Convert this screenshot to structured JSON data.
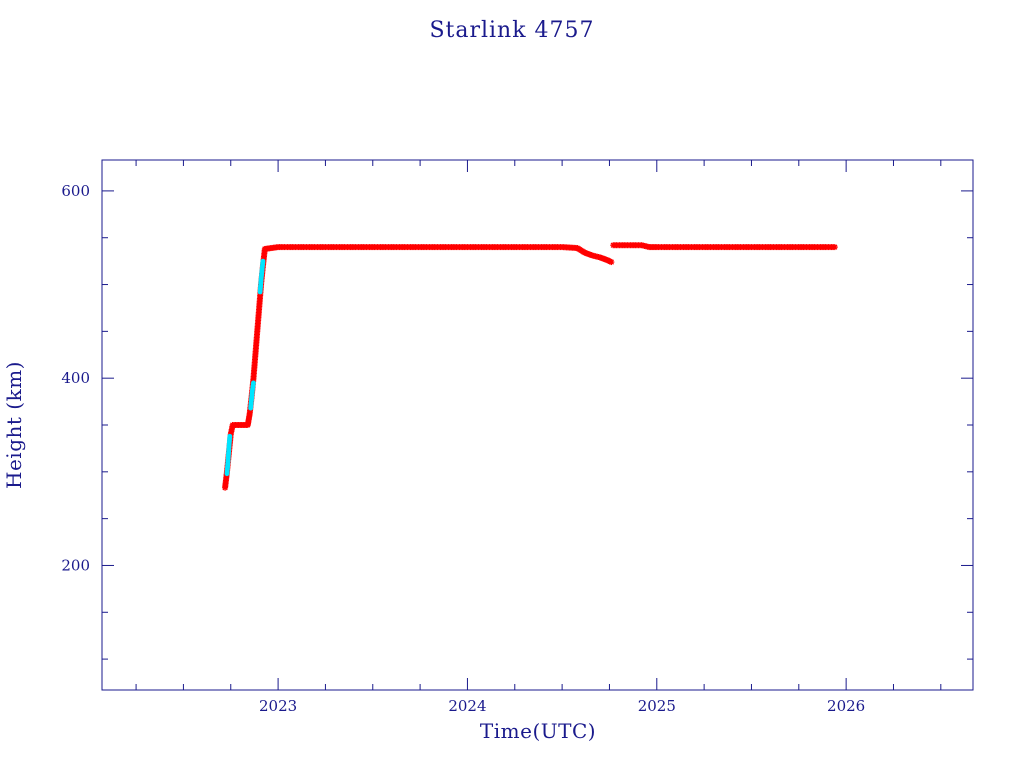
{
  "chart_data": {
    "type": "scatter",
    "title": "Starlink 4757",
    "xlabel": "Time(UTC)",
    "ylabel": "Height (km)",
    "xlim": [
      2022.07,
      2026.67
    ],
    "ylim": [
      67,
      633
    ],
    "x_ticks": [
      2023,
      2024,
      2025,
      2026
    ],
    "x_tick_labels": [
      "2023",
      "2024",
      "2025",
      "2026"
    ],
    "x_minor_ticks": [
      2022.25,
      2022.5,
      2022.75,
      2023.25,
      2023.5,
      2023.75,
      2024.25,
      2024.5,
      2024.75,
      2025.25,
      2025.5,
      2025.75,
      2026.25,
      2026.5
    ],
    "y_ticks": [
      200,
      400,
      600
    ],
    "y_tick_labels": [
      "200",
      "400",
      "600"
    ],
    "y_minor_ticks": [
      100,
      150,
      250,
      300,
      350,
      450,
      500,
      550
    ],
    "grid": false,
    "series": [
      {
        "color": "#ff0000",
        "marker": "asterisk",
        "segments": [
          [
            [
              2022.72,
              283
            ],
            [
              2022.73,
              300
            ],
            [
              2022.74,
              320
            ],
            [
              2022.75,
              340
            ],
            [
              2022.76,
              350
            ],
            [
              2022.8,
              350
            ],
            [
              2022.84,
              350
            ],
            [
              2022.85,
              362
            ],
            [
              2022.86,
              380
            ],
            [
              2022.87,
              400
            ],
            [
              2022.88,
              425
            ],
            [
              2022.89,
              450
            ],
            [
              2022.9,
              475
            ],
            [
              2022.91,
              500
            ],
            [
              2022.92,
              520
            ],
            [
              2022.93,
              538
            ],
            [
              2023.0,
              540
            ],
            [
              2023.5,
              540
            ],
            [
              2024.0,
              540
            ],
            [
              2024.5,
              540
            ],
            [
              2024.58,
              539
            ],
            [
              2024.62,
              534
            ],
            [
              2024.66,
              531
            ],
            [
              2024.7,
              529
            ],
            [
              2024.74,
              526
            ],
            [
              2024.76,
              524
            ]
          ],
          [
            [
              2024.77,
              542
            ],
            [
              2024.82,
              542
            ],
            [
              2024.87,
              542
            ],
            [
              2024.92,
              542
            ],
            [
              2024.96,
              540
            ],
            [
              2025.0,
              540
            ],
            [
              2025.5,
              540
            ],
            [
              2025.94,
              540
            ]
          ]
        ]
      },
      {
        "color": "#00e5ff",
        "marker": "dot",
        "segments": [
          [
            [
              2022.73,
              298
            ],
            [
              2022.735,
              310
            ],
            [
              2022.74,
              325
            ],
            [
              2022.745,
              338
            ]
          ],
          [
            [
              2022.855,
              368
            ],
            [
              2022.86,
              378
            ],
            [
              2022.865,
              388
            ],
            [
              2022.87,
              395
            ]
          ],
          [
            [
              2022.905,
              492
            ],
            [
              2022.91,
              505
            ],
            [
              2022.915,
              515
            ],
            [
              2022.92,
              525
            ]
          ]
        ]
      }
    ]
  }
}
